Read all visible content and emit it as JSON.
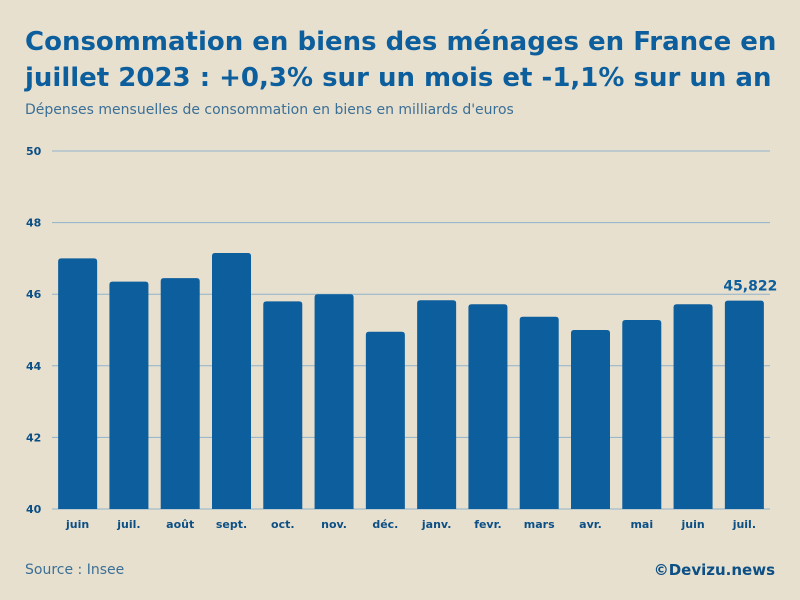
{
  "header": {
    "title": "Consommation en biens des ménages en France en juillet 2023 : +0,3% sur un mois et -1,1% sur un an",
    "subtitle": "Dépenses mensuelles de consommation en biens en milliards d'euros"
  },
  "footer": {
    "source": "Source : Insee",
    "brand": "©Devizu.news"
  },
  "colors": {
    "bar": "#0c5e9c",
    "grid": "#8fb3cc",
    "tick_text": "#0c4f85",
    "background": "#e8e0cf"
  },
  "chart_data": {
    "type": "bar",
    "title": "Consommation en biens des ménages en France en juillet 2023 : +0,3% sur un mois et -1,1% sur un an",
    "xlabel": "",
    "ylabel": "Dépenses mensuelles de consommation en biens en milliards d'euros",
    "ylim": [
      40,
      50
    ],
    "yticks": [
      40,
      42,
      44,
      46,
      48,
      50
    ],
    "grid": true,
    "categories": [
      "juin",
      "juil.",
      "août",
      "sept.",
      "oct.",
      "nov.",
      "déc.",
      "janv.",
      "fevr.",
      "mars",
      "avr.",
      "mai",
      "juin",
      "juil."
    ],
    "values": [
      47.0,
      46.35,
      46.45,
      47.15,
      45.8,
      46.0,
      44.95,
      45.83,
      45.72,
      45.37,
      45.0,
      45.28,
      45.72,
      45.822
    ],
    "annotations": [
      {
        "index": 13,
        "label": "45,822"
      }
    ]
  }
}
